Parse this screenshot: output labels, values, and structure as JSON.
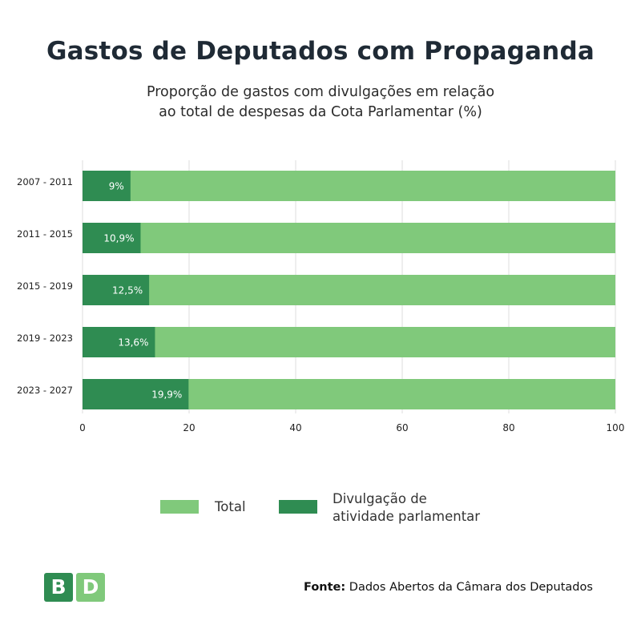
{
  "title": "Gastos de Deputados com Propaganda",
  "subtitle_lines": [
    "Proporção de gastos com divulgações em relação",
    "ao total de despesas da Cota Parlamentar (%)"
  ],
  "colors": {
    "total": "#80c97b",
    "divulgacao": "#2f8c52",
    "grid": "#dddddd",
    "logo_b": "#2f8c52",
    "logo_d": "#80c97b"
  },
  "chart_data": {
    "type": "bar",
    "orientation": "horizontal",
    "stacked": true,
    "categories": [
      "2007 - 2011",
      "2011 - 2015",
      "2015 - 2019",
      "2019 - 2023",
      "2023 - 2027"
    ],
    "series": [
      {
        "name": "Total",
        "values": [
          100,
          100,
          100,
          100,
          100
        ]
      },
      {
        "name": "Divulgação de atividade parlamentar",
        "values": [
          9,
          10.9,
          12.5,
          13.6,
          19.9
        ]
      }
    ],
    "data_labels": [
      "9%",
      "10,9%",
      "12,5%",
      "13,6%",
      "19,9%"
    ],
    "xlim": [
      0,
      100
    ],
    "xticks": [
      0,
      20,
      40,
      60,
      80,
      100
    ],
    "grid": true
  },
  "legend": {
    "total_label": "Total",
    "divulgacao_label_lines": [
      "Divulgação de",
      "atividade parlamentar"
    ]
  },
  "logo": {
    "letter_1": "B",
    "letter_2": "D"
  },
  "source": {
    "prefix": "Fonte:",
    "text": " Dados Abertos da Câmara dos Deputados"
  }
}
